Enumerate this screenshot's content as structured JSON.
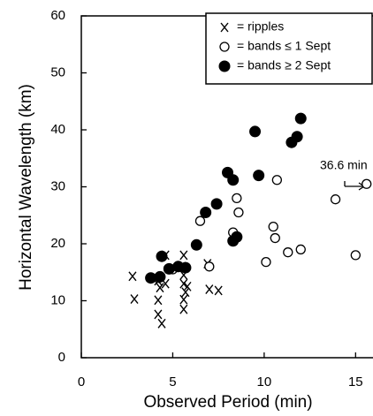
{
  "chart_data": {
    "type": "scatter",
    "x_label": "Observed Period (min)",
    "y_label": "Horizontal Wavelength (km)",
    "annotation": "36.6 min",
    "xlim": [
      0,
      16
    ],
    "ylim": [
      0,
      60
    ],
    "xticks": [
      0,
      5,
      10,
      15
    ],
    "yticks": [
      0,
      10,
      20,
      30,
      40,
      50,
      60
    ],
    "legend": "upper right",
    "series": [
      {
        "name": "= ripples",
        "marker": "x",
        "color": "#000000",
        "x": [
          2.8,
          2.9,
          4.2,
          4.3,
          4.2,
          4.2,
          4.4,
          4.6,
          4.6,
          5.5,
          5.6,
          5.6,
          5.6,
          5.7,
          5.6,
          5.6,
          5.8,
          6.9,
          7.0,
          7.5
        ],
        "values": [
          14.3,
          10.3,
          13.5,
          12.3,
          10.1,
          7.6,
          6.0,
          18.0,
          13.0,
          16.0,
          18.0,
          14.5,
          13.0,
          11.5,
          10.2,
          8.5,
          12.5,
          16.5,
          12.0,
          11.8
        ]
      },
      {
        "name": "= bands ≤ 1 Sept",
        "marker": "open",
        "color": "#000000",
        "x": [
          4.2,
          5.0,
          6.5,
          7.0,
          8.5,
          8.6,
          8.3,
          10.1,
          10.5,
          10.6,
          10.7,
          11.3,
          12.0,
          13.9,
          15.0,
          15.6
        ],
        "values": [
          14.0,
          15.5,
          24.0,
          16.0,
          28.0,
          25.5,
          22.0,
          16.8,
          23.0,
          21.0,
          31.2,
          18.5,
          19.0,
          27.8,
          18.0,
          30.5
        ]
      },
      {
        "name": "= bands ≥ 2 Sept",
        "marker": "filled",
        "color": "#000000",
        "x": [
          3.8,
          4.3,
          4.4,
          4.8,
          5.3,
          5.7,
          6.3,
          6.8,
          7.4,
          8.0,
          8.3,
          8.3,
          8.5,
          9.5,
          9.7,
          11.5,
          11.8,
          12.0
        ],
        "values": [
          14.0,
          14.2,
          17.8,
          15.6,
          16.0,
          15.8,
          19.8,
          25.5,
          27.0,
          32.5,
          31.2,
          20.5,
          21.2,
          39.7,
          32.0,
          37.8,
          38.8,
          42.0
        ]
      }
    ]
  }
}
